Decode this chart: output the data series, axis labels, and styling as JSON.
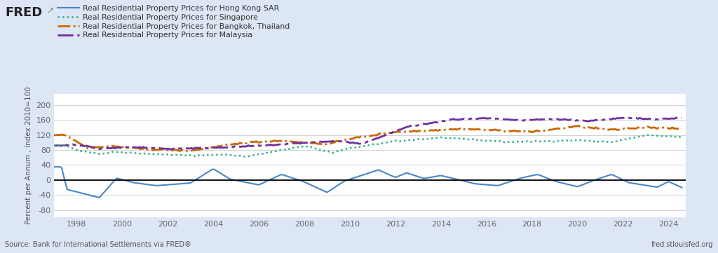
{
  "background_color": "#dce6f5",
  "plot_background_color": "#ffffff",
  "source_text": "Source: Bank for International Settlements via FRED®",
  "fred_url": "fred.stlouisfed.org",
  "ylabel_combined": "Percent per Annum , Index 2010=100",
  "yticks_left": [
    -80,
    -40,
    0,
    40
  ],
  "yticks_right": [
    80,
    120,
    160,
    200
  ],
  "ylim": [
    -100,
    230
  ],
  "xticks": [
    1998,
    2000,
    2002,
    2004,
    2006,
    2008,
    2010,
    2012,
    2014,
    2016,
    2018,
    2020,
    2022,
    2024
  ],
  "xlim": [
    1997.0,
    2024.75
  ],
  "legend": [
    {
      "label": "Real Residential Property Prices for Hong Kong SAR",
      "color": "#4a86c8",
      "linestyle": "solid",
      "linewidth": 1.8
    },
    {
      "label": "Real Residential Property Prices for Singapore",
      "color": "#2db37a",
      "linestyle": "dotted",
      "linewidth": 2.0
    },
    {
      "label": "Real Residential Property Prices for Bangkok, Thailand",
      "color": "#cc6600",
      "linestyle": "dashdot",
      "linewidth": 2.0
    },
    {
      "label": "Real Residential Property Prices for Malaysia",
      "color": "#7030a0",
      "linestyle": "dashdot",
      "linewidth": 2.0
    }
  ],
  "hk_color": "#4a86c8",
  "sg_color": "#2db37a",
  "bk_color": "#cc6600",
  "my_color": "#7030a0",
  "zero_line_color": "#000000",
  "grid_color": "#cccccc",
  "tick_color": "#666666",
  "label_color": "#555555"
}
